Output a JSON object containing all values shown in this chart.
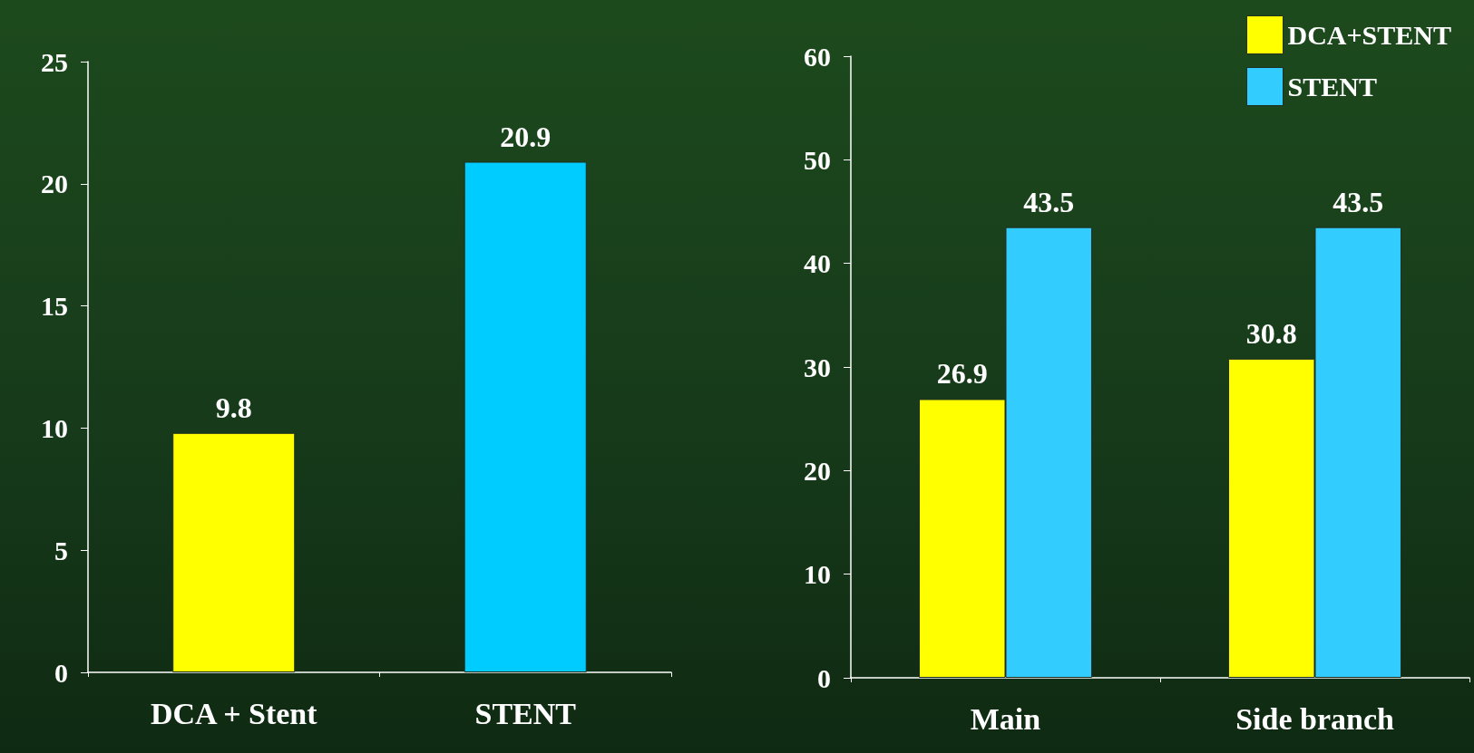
{
  "chart_data": [
    {
      "type": "bar",
      "categories": [
        "DCA + Stent",
        "STENT"
      ],
      "values": [
        9.8,
        20.9
      ],
      "colors": [
        "#ffff00",
        "#00ccff"
      ],
      "ylim": [
        0,
        25
      ],
      "yticks": [
        0,
        5,
        10,
        15,
        20,
        25
      ],
      "data_labels": true,
      "grid": false
    },
    {
      "type": "bar",
      "categories": [
        "Main",
        "Side branch"
      ],
      "series": [
        {
          "name": "DCA+STENT",
          "color": "#ffff00",
          "values": [
            26.9,
            30.8
          ]
        },
        {
          "name": "STENT",
          "color": "#33ccff",
          "values": [
            43.5,
            43.5
          ]
        }
      ],
      "ylim": [
        0,
        60
      ],
      "yticks": [
        0,
        10,
        20,
        30,
        40,
        50,
        60
      ],
      "data_labels": true,
      "grid": false,
      "legend": "top right"
    }
  ]
}
